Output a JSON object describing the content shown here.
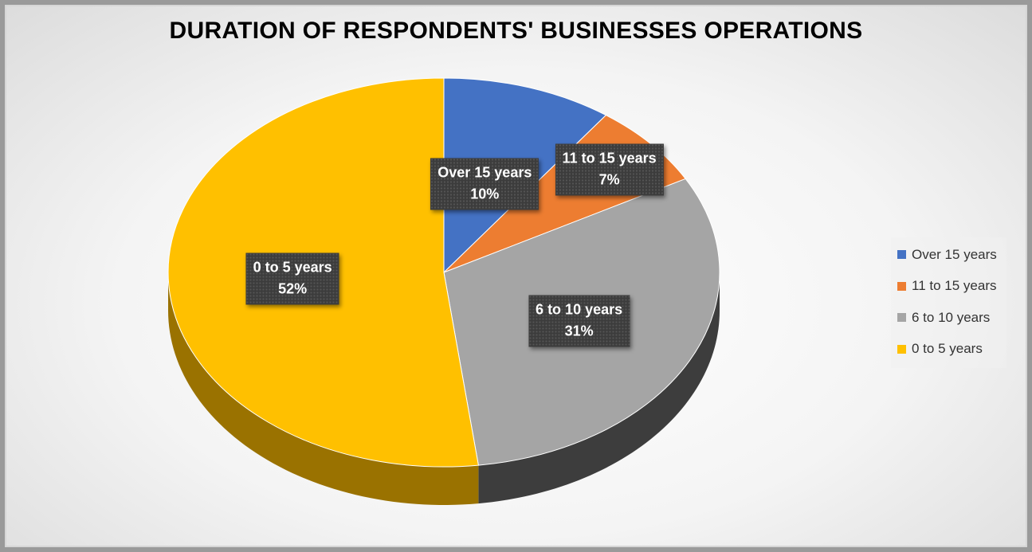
{
  "chart_data": {
    "type": "pie",
    "title": "DURATION OF RESPONDENTS' BUSINESSES OPERATIONS",
    "categories": [
      "Over 15 years",
      "11 to 15 years",
      "6 to 10 years",
      "0 to 5 years"
    ],
    "values": [
      10,
      7,
      31,
      52
    ],
    "value_labels": [
      "10%",
      "7%",
      "31%",
      "52%"
    ],
    "colors": [
      "#4472C4",
      "#ED7D31",
      "#A5A5A5",
      "#FFC000"
    ],
    "side_colors": [
      "#2B4C85",
      "#A0531F",
      "#3D3D3D",
      "#9A7200"
    ],
    "legend": {
      "position": "right",
      "entries": [
        "Over 15 years",
        "11 to 15 years",
        "6 to 10 years",
        "0 to 5 years"
      ]
    },
    "style": "3d"
  }
}
